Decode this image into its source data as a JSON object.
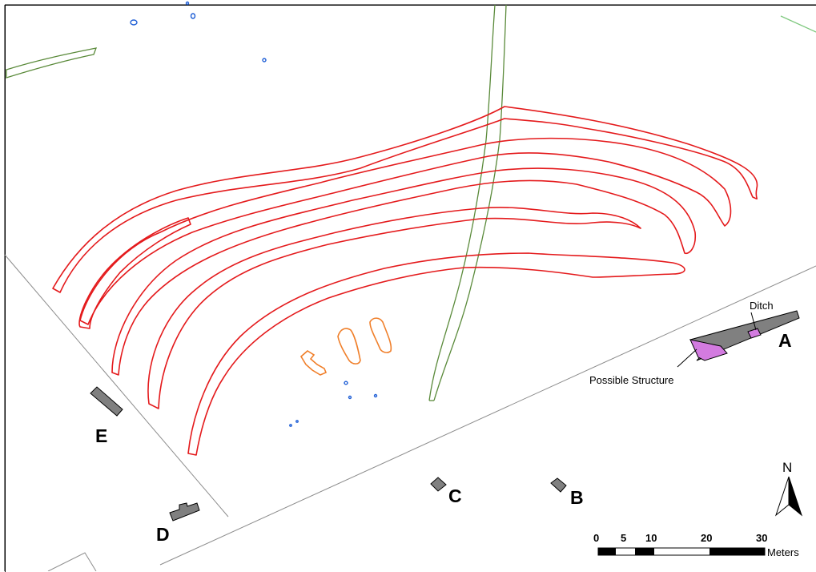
{
  "labels": {
    "A": "A",
    "B": "B",
    "C": "C",
    "D": "D",
    "E": "E",
    "ditch": "Ditch",
    "possible_structure": "Possible Structure"
  },
  "north_arrow": {
    "label": "N"
  },
  "scale_bar": {
    "ticks": [
      "0",
      "5",
      "10",
      "20",
      "30"
    ],
    "unit": "Meters"
  },
  "colors": {
    "feature_outline": "#e41a1c",
    "small_feature": "#f07f2a",
    "pit": "#1f5fd6",
    "green_path": "#5a8a3a",
    "structure_fill": "#808080",
    "possible_structure_fill": "#d37be0",
    "boundary": "#8c8c8c"
  }
}
